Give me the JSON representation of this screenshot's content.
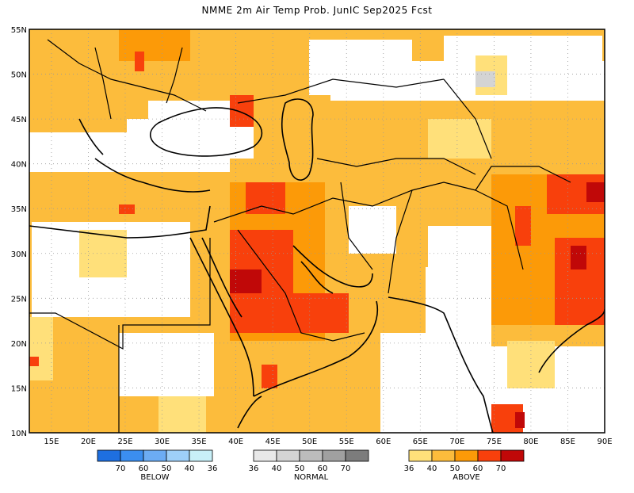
{
  "title": "NMME 2m Air Temp Prob. JunIC  Sep2025 Fcst",
  "map": {
    "lat_labels": [
      "55N",
      "50N",
      "45N",
      "40N",
      "35N",
      "30N",
      "25N",
      "20N",
      "15N",
      "10N"
    ],
    "lon_labels": [
      "15E",
      "20E",
      "25E",
      "30E",
      "35E",
      "40E",
      "45E",
      "50E",
      "55E",
      "60E",
      "65E",
      "70E",
      "75E",
      "80E",
      "85E",
      "90E"
    ]
  },
  "legend": {
    "below": {
      "title": "BELOW",
      "ticks": [
        "70",
        "60",
        "50",
        "40",
        "36"
      ],
      "colors": [
        "#1e6fe0",
        "#3b8ef0",
        "#6cacf4",
        "#9ecff8",
        "#c8f0f8"
      ]
    },
    "normal": {
      "title": "NORMAL",
      "ticks": [
        "36",
        "40",
        "50",
        "60",
        "70"
      ],
      "colors": [
        "#e8e8e8",
        "#d4d4d4",
        "#bcbcbc",
        "#a0a0a0",
        "#7c7c7c"
      ]
    },
    "above": {
      "title": "ABOVE",
      "ticks": [
        "36",
        "40",
        "50",
        "60",
        "70"
      ],
      "colors": [
        "#ffe07a",
        "#fcbc3c",
        "#fc9a08",
        "#f8400c",
        "#c00808"
      ]
    }
  }
}
